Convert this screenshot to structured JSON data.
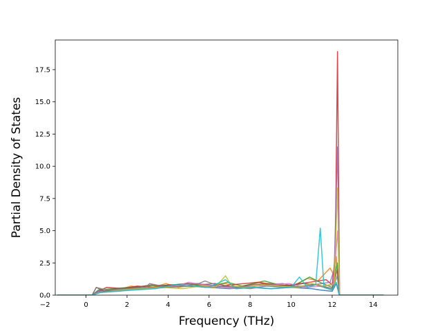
{
  "chart_data": {
    "type": "line",
    "title": "",
    "xlabel": "Frequency (THz)",
    "ylabel": "Partial Density of States",
    "xlim": [
      -1.5,
      15.2
    ],
    "ylim": [
      0,
      19.8
    ],
    "xticks": [
      -2,
      0,
      2,
      4,
      6,
      8,
      10,
      12,
      14
    ],
    "xtick_labels": [
      "−2",
      "0",
      "2",
      "4",
      "6",
      "8",
      "10",
      "12",
      "14"
    ],
    "yticks": [
      0,
      2.5,
      5,
      7.5,
      10,
      12.5,
      15,
      17.5
    ],
    "ytick_labels": [
      "0.0",
      "2.5",
      "5.0",
      "7.5",
      "10.0",
      "12.5",
      "15.0",
      "17.5"
    ],
    "grid": false,
    "legend": "none",
    "series": [
      {
        "color": "#1f77b4",
        "points": [
          [
            -1.4,
            0
          ],
          [
            0.3,
            0
          ],
          [
            0.5,
            0.2
          ],
          [
            1.2,
            0.3
          ],
          [
            2.0,
            0.4
          ],
          [
            3.0,
            0.5
          ],
          [
            4.0,
            0.6
          ],
          [
            5.0,
            0.7
          ],
          [
            6.0,
            0.6
          ],
          [
            7.0,
            0.5
          ],
          [
            8.0,
            0.6
          ],
          [
            9.0,
            0.5
          ],
          [
            10.0,
            0.6
          ],
          [
            11.0,
            0.5
          ],
          [
            11.4,
            0.4
          ],
          [
            12.0,
            0.3
          ],
          [
            12.2,
            0.9
          ],
          [
            12.35,
            0
          ],
          [
            14.5,
            0
          ]
        ]
      },
      {
        "color": "#ff7f0e",
        "points": [
          [
            -1.4,
            0
          ],
          [
            0.3,
            0
          ],
          [
            0.6,
            0.3
          ],
          [
            1.5,
            0.4
          ],
          [
            2.2,
            0.7
          ],
          [
            3.0,
            0.5
          ],
          [
            3.9,
            0.9
          ],
          [
            4.5,
            0.6
          ],
          [
            5.3,
            0.8
          ],
          [
            6.0,
            0.7
          ],
          [
            6.8,
            0.9
          ],
          [
            7.5,
            0.6
          ],
          [
            8.5,
            1.0
          ],
          [
            9.5,
            0.7
          ],
          [
            10.2,
            0.8
          ],
          [
            10.8,
            1.3
          ],
          [
            11.3,
            1.1
          ],
          [
            11.9,
            2.1
          ],
          [
            12.1,
            1.5
          ],
          [
            12.2,
            3.0
          ],
          [
            12.35,
            0
          ],
          [
            14.5,
            0
          ]
        ]
      },
      {
        "color": "#2ca02c",
        "points": [
          [
            -1.4,
            0
          ],
          [
            0.3,
            0
          ],
          [
            0.6,
            0.4
          ],
          [
            1.3,
            0.5
          ],
          [
            2.1,
            0.6
          ],
          [
            3.0,
            0.7
          ],
          [
            4.2,
            0.8
          ],
          [
            5.0,
            0.9
          ],
          [
            5.8,
            0.6
          ],
          [
            6.9,
            1.0
          ],
          [
            7.6,
            0.7
          ],
          [
            8.7,
            1.1
          ],
          [
            9.4,
            0.8
          ],
          [
            10.1,
            0.7
          ],
          [
            10.9,
            1.4
          ],
          [
            11.4,
            1.0
          ],
          [
            12.0,
            0.6
          ],
          [
            12.25,
            2.5
          ],
          [
            12.35,
            0
          ],
          [
            14.5,
            0
          ]
        ]
      },
      {
        "color": "#d62728",
        "points": [
          [
            -1.4,
            0
          ],
          [
            0.3,
            0
          ],
          [
            0.6,
            0.3
          ],
          [
            1.0,
            0.6
          ],
          [
            1.8,
            0.5
          ],
          [
            2.5,
            0.7
          ],
          [
            3.3,
            0.6
          ],
          [
            4.1,
            0.8
          ],
          [
            5.0,
            0.7
          ],
          [
            6.2,
            0.6
          ],
          [
            7.1,
            0.8
          ],
          [
            8.4,
            1.0
          ],
          [
            9.2,
            0.7
          ],
          [
            10.0,
            0.8
          ],
          [
            10.9,
            1.0
          ],
          [
            11.7,
            1.2
          ],
          [
            12.0,
            0.8
          ],
          [
            12.15,
            3.0
          ],
          [
            12.26,
            18.9
          ],
          [
            12.36,
            0
          ],
          [
            14.5,
            0
          ]
        ]
      },
      {
        "color": "#9467bd",
        "points": [
          [
            -1.4,
            0
          ],
          [
            0.3,
            0
          ],
          [
            0.6,
            0.3
          ],
          [
            1.4,
            0.4
          ],
          [
            2.3,
            0.5
          ],
          [
            3.5,
            0.6
          ],
          [
            4.6,
            0.8
          ],
          [
            5.4,
            0.9
          ],
          [
            6.4,
            0.7
          ],
          [
            7.3,
            0.6
          ],
          [
            8.2,
            0.7
          ],
          [
            9.6,
            0.9
          ],
          [
            10.4,
            0.6
          ],
          [
            11.1,
            0.8
          ],
          [
            11.9,
            1.0
          ],
          [
            12.1,
            2.0
          ],
          [
            12.26,
            11.5
          ],
          [
            12.36,
            0
          ],
          [
            14.5,
            0
          ]
        ]
      },
      {
        "color": "#8c564b",
        "points": [
          [
            -1.4,
            0
          ],
          [
            0.3,
            0
          ],
          [
            0.5,
            0.6
          ],
          [
            0.9,
            0.3
          ],
          [
            1.5,
            0.5
          ],
          [
            2.4,
            0.6
          ],
          [
            3.2,
            0.8
          ],
          [
            4.0,
            0.7
          ],
          [
            4.9,
            0.9
          ],
          [
            5.6,
            0.8
          ],
          [
            6.3,
            0.9
          ],
          [
            7.2,
            0.6
          ],
          [
            8.1,
            0.8
          ],
          [
            8.9,
            0.9
          ],
          [
            9.8,
            0.7
          ],
          [
            10.6,
            0.9
          ],
          [
            11.3,
            0.8
          ],
          [
            12.0,
            0.5
          ],
          [
            12.25,
            2.0
          ],
          [
            12.35,
            0
          ],
          [
            14.5,
            0
          ]
        ]
      },
      {
        "color": "#e377c2",
        "points": [
          [
            -1.4,
            0
          ],
          [
            0.3,
            0
          ],
          [
            0.6,
            0.2
          ],
          [
            1.6,
            0.3
          ],
          [
            2.6,
            0.5
          ],
          [
            3.6,
            0.6
          ],
          [
            4.4,
            0.7
          ],
          [
            5.0,
            1.0
          ],
          [
            5.7,
            0.8
          ],
          [
            6.6,
            0.6
          ],
          [
            7.4,
            0.5
          ],
          [
            8.3,
            0.7
          ],
          [
            9.3,
            0.8
          ],
          [
            9.9,
            0.9
          ],
          [
            10.7,
            0.6
          ],
          [
            11.5,
            0.7
          ],
          [
            12.05,
            0.8
          ],
          [
            12.27,
            5.0
          ],
          [
            12.37,
            0
          ],
          [
            14.5,
            0
          ]
        ]
      },
      {
        "color": "#7f7f7f",
        "points": [
          [
            -1.4,
            0
          ],
          [
            0.3,
            0
          ],
          [
            0.5,
            0.6
          ],
          [
            1.0,
            0.4
          ],
          [
            1.9,
            0.5
          ],
          [
            2.9,
            0.6
          ],
          [
            3.1,
            0.9
          ],
          [
            4.0,
            0.6
          ],
          [
            4.8,
            0.7
          ],
          [
            5.5,
            0.9
          ],
          [
            5.8,
            1.1
          ],
          [
            6.5,
            0.7
          ],
          [
            7.3,
            0.6
          ],
          [
            8.0,
            0.5
          ],
          [
            8.8,
            0.7
          ],
          [
            9.7,
            0.6
          ],
          [
            10.5,
            0.7
          ],
          [
            11.2,
            0.8
          ],
          [
            12.0,
            0.4
          ],
          [
            12.25,
            1.5
          ],
          [
            12.35,
            0
          ],
          [
            14.5,
            0
          ]
        ]
      },
      {
        "color": "#bcbd22",
        "points": [
          [
            -1.4,
            0
          ],
          [
            0.3,
            0
          ],
          [
            0.7,
            0.2
          ],
          [
            1.7,
            0.4
          ],
          [
            2.7,
            0.5
          ],
          [
            3.7,
            0.6
          ],
          [
            4.7,
            0.5
          ],
          [
            5.6,
            0.7
          ],
          [
            6.3,
            0.6
          ],
          [
            6.8,
            1.5
          ],
          [
            7.1,
            0.7
          ],
          [
            7.9,
            0.6
          ],
          [
            8.6,
            0.8
          ],
          [
            9.5,
            0.7
          ],
          [
            10.3,
            0.6
          ],
          [
            11.0,
            0.9
          ],
          [
            11.6,
            0.7
          ],
          [
            12.1,
            0.9
          ],
          [
            12.26,
            8.3
          ],
          [
            12.36,
            0
          ],
          [
            14.5,
            0
          ]
        ]
      },
      {
        "color": "#17becf",
        "points": [
          [
            -1.4,
            0
          ],
          [
            0.3,
            0
          ],
          [
            0.7,
            0.2
          ],
          [
            1.5,
            0.3
          ],
          [
            2.4,
            0.4
          ],
          [
            3.4,
            0.5
          ],
          [
            4.3,
            0.8
          ],
          [
            5.2,
            0.7
          ],
          [
            6.0,
            0.6
          ],
          [
            6.8,
            1.2
          ],
          [
            7.3,
            0.5
          ],
          [
            8.2,
            0.6
          ],
          [
            9.1,
            0.5
          ],
          [
            10.0,
            0.6
          ],
          [
            10.4,
            1.4
          ],
          [
            10.8,
            0.6
          ],
          [
            11.2,
            0.8
          ],
          [
            11.42,
            5.2
          ],
          [
            11.6,
            0.6
          ],
          [
            12.0,
            0.4
          ],
          [
            12.2,
            1.0
          ],
          [
            12.35,
            0
          ],
          [
            14.5,
            0
          ]
        ]
      }
    ]
  }
}
